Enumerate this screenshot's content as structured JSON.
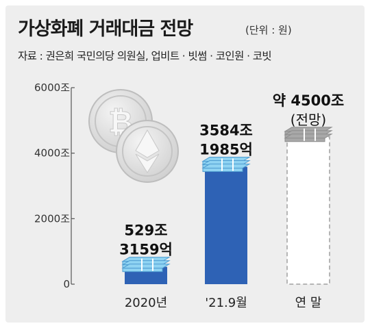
{
  "header": {
    "title": "가상화폐 거래대금 전망",
    "unit": "(단위 : 원)",
    "source": "자료 : 권은희 국민의당 의원실, 업비트 · 빗썸 · 코인원 · 코빗"
  },
  "colors": {
    "panel": "#eeeeee",
    "bar_actual": "#2e62b5",
    "bar_forecast": "#ffffff",
    "coin": "#dcdcdc",
    "money_light": "#8fd3f2",
    "money_gray": "#a8a8a8"
  },
  "icons": [
    "bitcoin-coin-icon",
    "ethereum-coin-icon",
    "cash-stack-icon"
  ],
  "chart_data": {
    "type": "bar",
    "categories": [
      "2020년",
      "'21.9월",
      "연 말"
    ],
    "values": [
      529.3159,
      3584.1985,
      4500
    ],
    "forecast": [
      false,
      false,
      true
    ],
    "data_labels": [
      [
        "529조",
        "3159억"
      ],
      [
        "3584조",
        "1985억"
      ],
      [
        "약 4500조",
        "(전망)"
      ]
    ],
    "yticks": [
      0,
      2000,
      4000,
      6000
    ],
    "ytick_labels": [
      "0",
      "2000조",
      "4000조",
      "6000조"
    ],
    "ylim": [
      0,
      6000
    ],
    "title": "가상화폐 거래대금 전망",
    "xlabel": "",
    "ylabel": "",
    "grid": false,
    "legend": "none"
  }
}
